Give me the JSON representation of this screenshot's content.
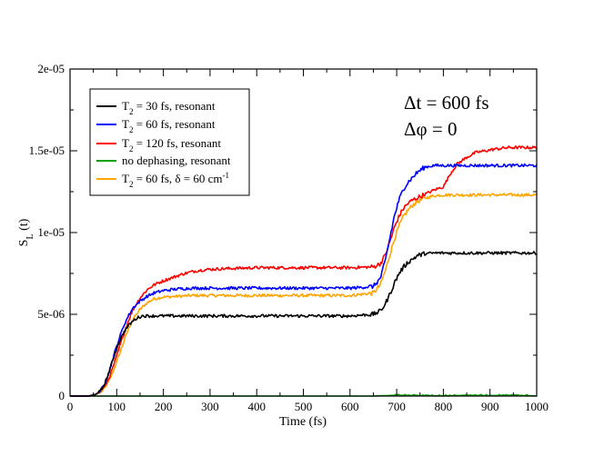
{
  "chart_data": {
    "type": "line",
    "title": "",
    "xlabel": "Time (fs)",
    "ylabel": {
      "base": "S",
      "sub": "L",
      "tail": " (t)"
    },
    "xlim": [
      0,
      1000
    ],
    "ylim": [
      0,
      2e-05
    ],
    "x_ticks": [
      0,
      100,
      200,
      300,
      400,
      500,
      600,
      700,
      800,
      900,
      1000
    ],
    "x_tick_labels": [
      "0",
      "100",
      "200",
      "300",
      "400",
      "500",
      "600",
      "700",
      "800",
      "900",
      "1000"
    ],
    "y_ticks": [
      0,
      5e-06,
      1e-05,
      1.5e-05,
      2e-05
    ],
    "y_tick_labels": [
      "0",
      "5e-06",
      "1e-05",
      "1.5e-05",
      "2e-05"
    ],
    "grid": false,
    "legend_position": "top-left",
    "annotations": [
      {
        "text": "Δt = 600 fs",
        "position": "top-right"
      },
      {
        "text": "Δφ = 0",
        "position": "top-right"
      }
    ],
    "series": [
      {
        "name": "T2 = 30 fs, resonant",
        "legend": {
          "pre": "T",
          "sub": "2",
          "mid": " = 30 fs, resonant",
          "sup": "",
          "post": ""
        },
        "color": "#000000",
        "x": [
          0,
          40,
          55,
          65,
          75,
          85,
          95,
          105,
          115,
          125,
          135,
          145,
          155,
          165,
          180,
          200,
          300,
          400,
          500,
          600,
          650,
          665,
          675,
          685,
          695,
          705,
          715,
          725,
          735,
          745,
          760,
          780,
          800,
          850,
          900,
          950,
          1000
        ],
        "y": [
          0,
          0,
          1e-07,
          3e-07,
          8e-07,
          1.6e-06,
          2.5e-06,
          3.3e-06,
          3.9e-06,
          4.3e-06,
          4.6e-06,
          4.8e-06,
          4.9e-06,
          4.9e-06,
          4.9e-06,
          4.9e-06,
          4.9e-06,
          4.9e-06,
          4.9e-06,
          4.9e-06,
          5e-06,
          5.2e-06,
          5.6e-06,
          6.2e-06,
          6.9e-06,
          7.5e-06,
          7.9e-06,
          8.2e-06,
          8.4e-06,
          8.6e-06,
          8.7e-06,
          8.75e-06,
          8.75e-06,
          8.75e-06,
          8.75e-06,
          8.75e-06,
          8.75e-06
        ]
      },
      {
        "name": "T2 = 60 fs, resonant",
        "legend": {
          "pre": "T",
          "sub": "2",
          "mid": " = 60 fs, resonant",
          "sup": "",
          "post": ""
        },
        "color": "#0000ff",
        "x": [
          0,
          40,
          55,
          65,
          75,
          85,
          95,
          105,
          115,
          125,
          135,
          150,
          165,
          180,
          200,
          230,
          260,
          300,
          400,
          500,
          600,
          650,
          665,
          675,
          685,
          695,
          705,
          715,
          725,
          735,
          745,
          760,
          780,
          800,
          850,
          900,
          950,
          1000
        ],
        "y": [
          0,
          0,
          1e-07,
          3e-07,
          8e-07,
          1.6e-06,
          2.6e-06,
          3.5e-06,
          4.3e-06,
          4.9e-06,
          5.4e-06,
          5.8e-06,
          6.1e-06,
          6.3e-06,
          6.45e-06,
          6.55e-06,
          6.6e-06,
          6.6e-06,
          6.6e-06,
          6.6e-06,
          6.6e-06,
          6.7e-06,
          7.2e-06,
          8.2e-06,
          9.6e-06,
          1.1e-05,
          1.2e-05,
          1.27e-05,
          1.31e-05,
          1.34e-05,
          1.37e-05,
          1.4e-05,
          1.41e-05,
          1.41e-05,
          1.41e-05,
          1.41e-05,
          1.41e-05,
          1.41e-05
        ]
      },
      {
        "name": "T2 = 120 fs, resonant",
        "legend": {
          "pre": "T",
          "sub": "2",
          "mid": " = 120 fs, resonant",
          "sup": "",
          "post": ""
        },
        "color": "#ff0000",
        "x": [
          0,
          40,
          55,
          65,
          75,
          85,
          95,
          105,
          115,
          125,
          135,
          150,
          165,
          180,
          200,
          220,
          240,
          260,
          280,
          300,
          340,
          400,
          500,
          600,
          650,
          665,
          675,
          685,
          695,
          705,
          715,
          725,
          735,
          750,
          765,
          780,
          800,
          815,
          830,
          850,
          870,
          890,
          910,
          940,
          970,
          1000
        ],
        "y": [
          0,
          0,
          1e-07,
          3e-07,
          6e-07,
          1.2e-06,
          2e-06,
          2.9e-06,
          3.8e-06,
          4.6e-06,
          5.3e-06,
          6e-06,
          6.5e-06,
          6.8e-06,
          7.05e-06,
          7.25e-06,
          7.45e-06,
          7.6e-06,
          7.7e-06,
          7.75e-06,
          7.8e-06,
          7.85e-06,
          7.85e-06,
          7.85e-06,
          7.9e-06,
          8.1e-06,
          8.6e-06,
          9.4e-06,
          1.03e-05,
          1.1e-05,
          1.15e-05,
          1.18e-05,
          1.2e-05,
          1.22e-05,
          1.24e-05,
          1.26e-05,
          1.28e-05,
          1.36e-05,
          1.42e-05,
          1.46e-05,
          1.49e-05,
          1.5e-05,
          1.51e-05,
          1.52e-05,
          1.52e-05,
          1.52e-05
        ]
      },
      {
        "name": "no dephasing, resonant",
        "legend": {
          "pre": "no dephasing, resonant",
          "sub": "",
          "mid": "",
          "sup": "",
          "post": ""
        },
        "color": "#00a000",
        "x": [
          0,
          100,
          200,
          300,
          400,
          500,
          600,
          650,
          700,
          750,
          800,
          850,
          900,
          950,
          1000
        ],
        "y": [
          0,
          0,
          0,
          0,
          0,
          0,
          0,
          0,
          5e-08,
          3e-08,
          0,
          5e-08,
          3e-08,
          5e-08,
          0
        ]
      },
      {
        "name": "T2 = 60 fs, δ = 60 cm-1",
        "legend": {
          "pre": "T",
          "sub": "2",
          "mid": " = 60 fs, δ = 60 cm",
          "sup": "-1",
          "post": ""
        },
        "color": "#ffa500",
        "x": [
          0,
          40,
          55,
          65,
          75,
          85,
          95,
          105,
          115,
          125,
          135,
          150,
          165,
          180,
          200,
          230,
          260,
          300,
          400,
          500,
          600,
          650,
          665,
          675,
          685,
          695,
          705,
          715,
          725,
          735,
          745,
          760,
          780,
          800,
          850,
          900,
          950,
          1000
        ],
        "y": [
          0,
          0,
          1e-07,
          2e-07,
          5e-07,
          1e-06,
          1.7e-06,
          2.5e-06,
          3.3e-06,
          4.1e-06,
          4.7e-06,
          5.3e-06,
          5.7e-06,
          5.95e-06,
          6.05e-06,
          6.1e-06,
          6.15e-06,
          6.15e-06,
          6.15e-06,
          6.15e-06,
          6.15e-06,
          6.3e-06,
          6.8e-06,
          7.6e-06,
          8.6e-06,
          9.6e-06,
          1.04e-05,
          1.1e-05,
          1.14e-05,
          1.17e-05,
          1.19e-05,
          1.21e-05,
          1.225e-05,
          1.23e-05,
          1.23e-05,
          1.23e-05,
          1.23e-05,
          1.23e-05
        ]
      }
    ]
  }
}
